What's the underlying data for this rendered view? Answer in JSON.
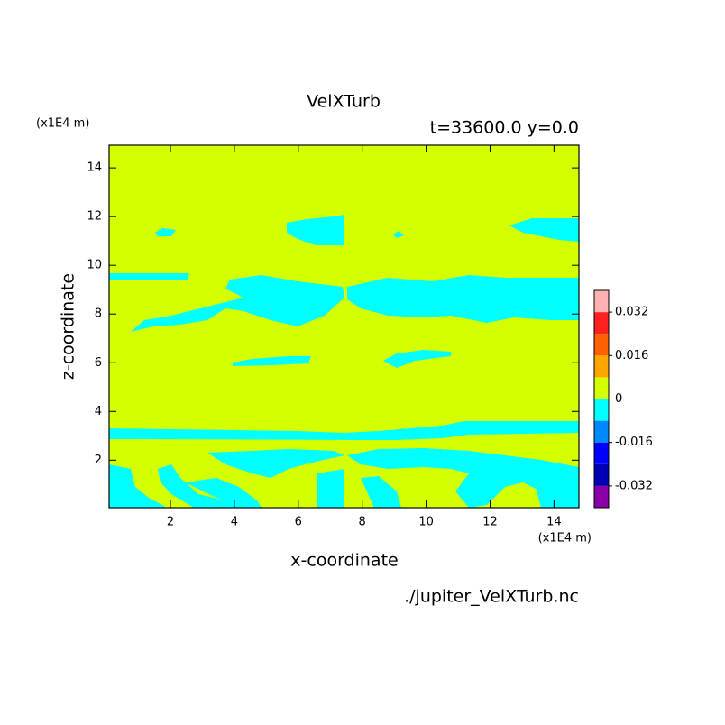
{
  "chart_data": {
    "type": "contour",
    "title": "VelXTurb",
    "subtitle": "t=33600.0 y=0.0",
    "x_label": "x-coordinate",
    "y_label": "z-coordinate",
    "x_unit": "(x1E4 m)",
    "y_unit": "(x1E4 m)",
    "footer": "./jupiter_VelXTurb.nc",
    "xlim": [
      0.08,
      14.78
    ],
    "ylim": [
      0.05,
      14.93
    ],
    "xticks": [
      2,
      4,
      6,
      8,
      10,
      12,
      14
    ],
    "yticks": [
      2,
      4,
      6,
      8,
      10,
      12,
      14
    ],
    "colorbar": {
      "levels": [
        -0.04,
        -0.032,
        -0.024,
        -0.016,
        -0.008,
        0,
        0.008,
        0.016,
        0.024,
        0.032,
        0.04
      ],
      "colors": [
        "#8a00a8",
        "#0000b4",
        "#0000ff",
        "#0088ff",
        "#00ffff",
        "#d4ff00",
        "#ffa500",
        "#ff6000",
        "#ff2020",
        "#ffb0b0"
      ],
      "ticks": [
        -0.032,
        -0.016,
        0,
        0.016,
        0.032
      ]
    }
  }
}
